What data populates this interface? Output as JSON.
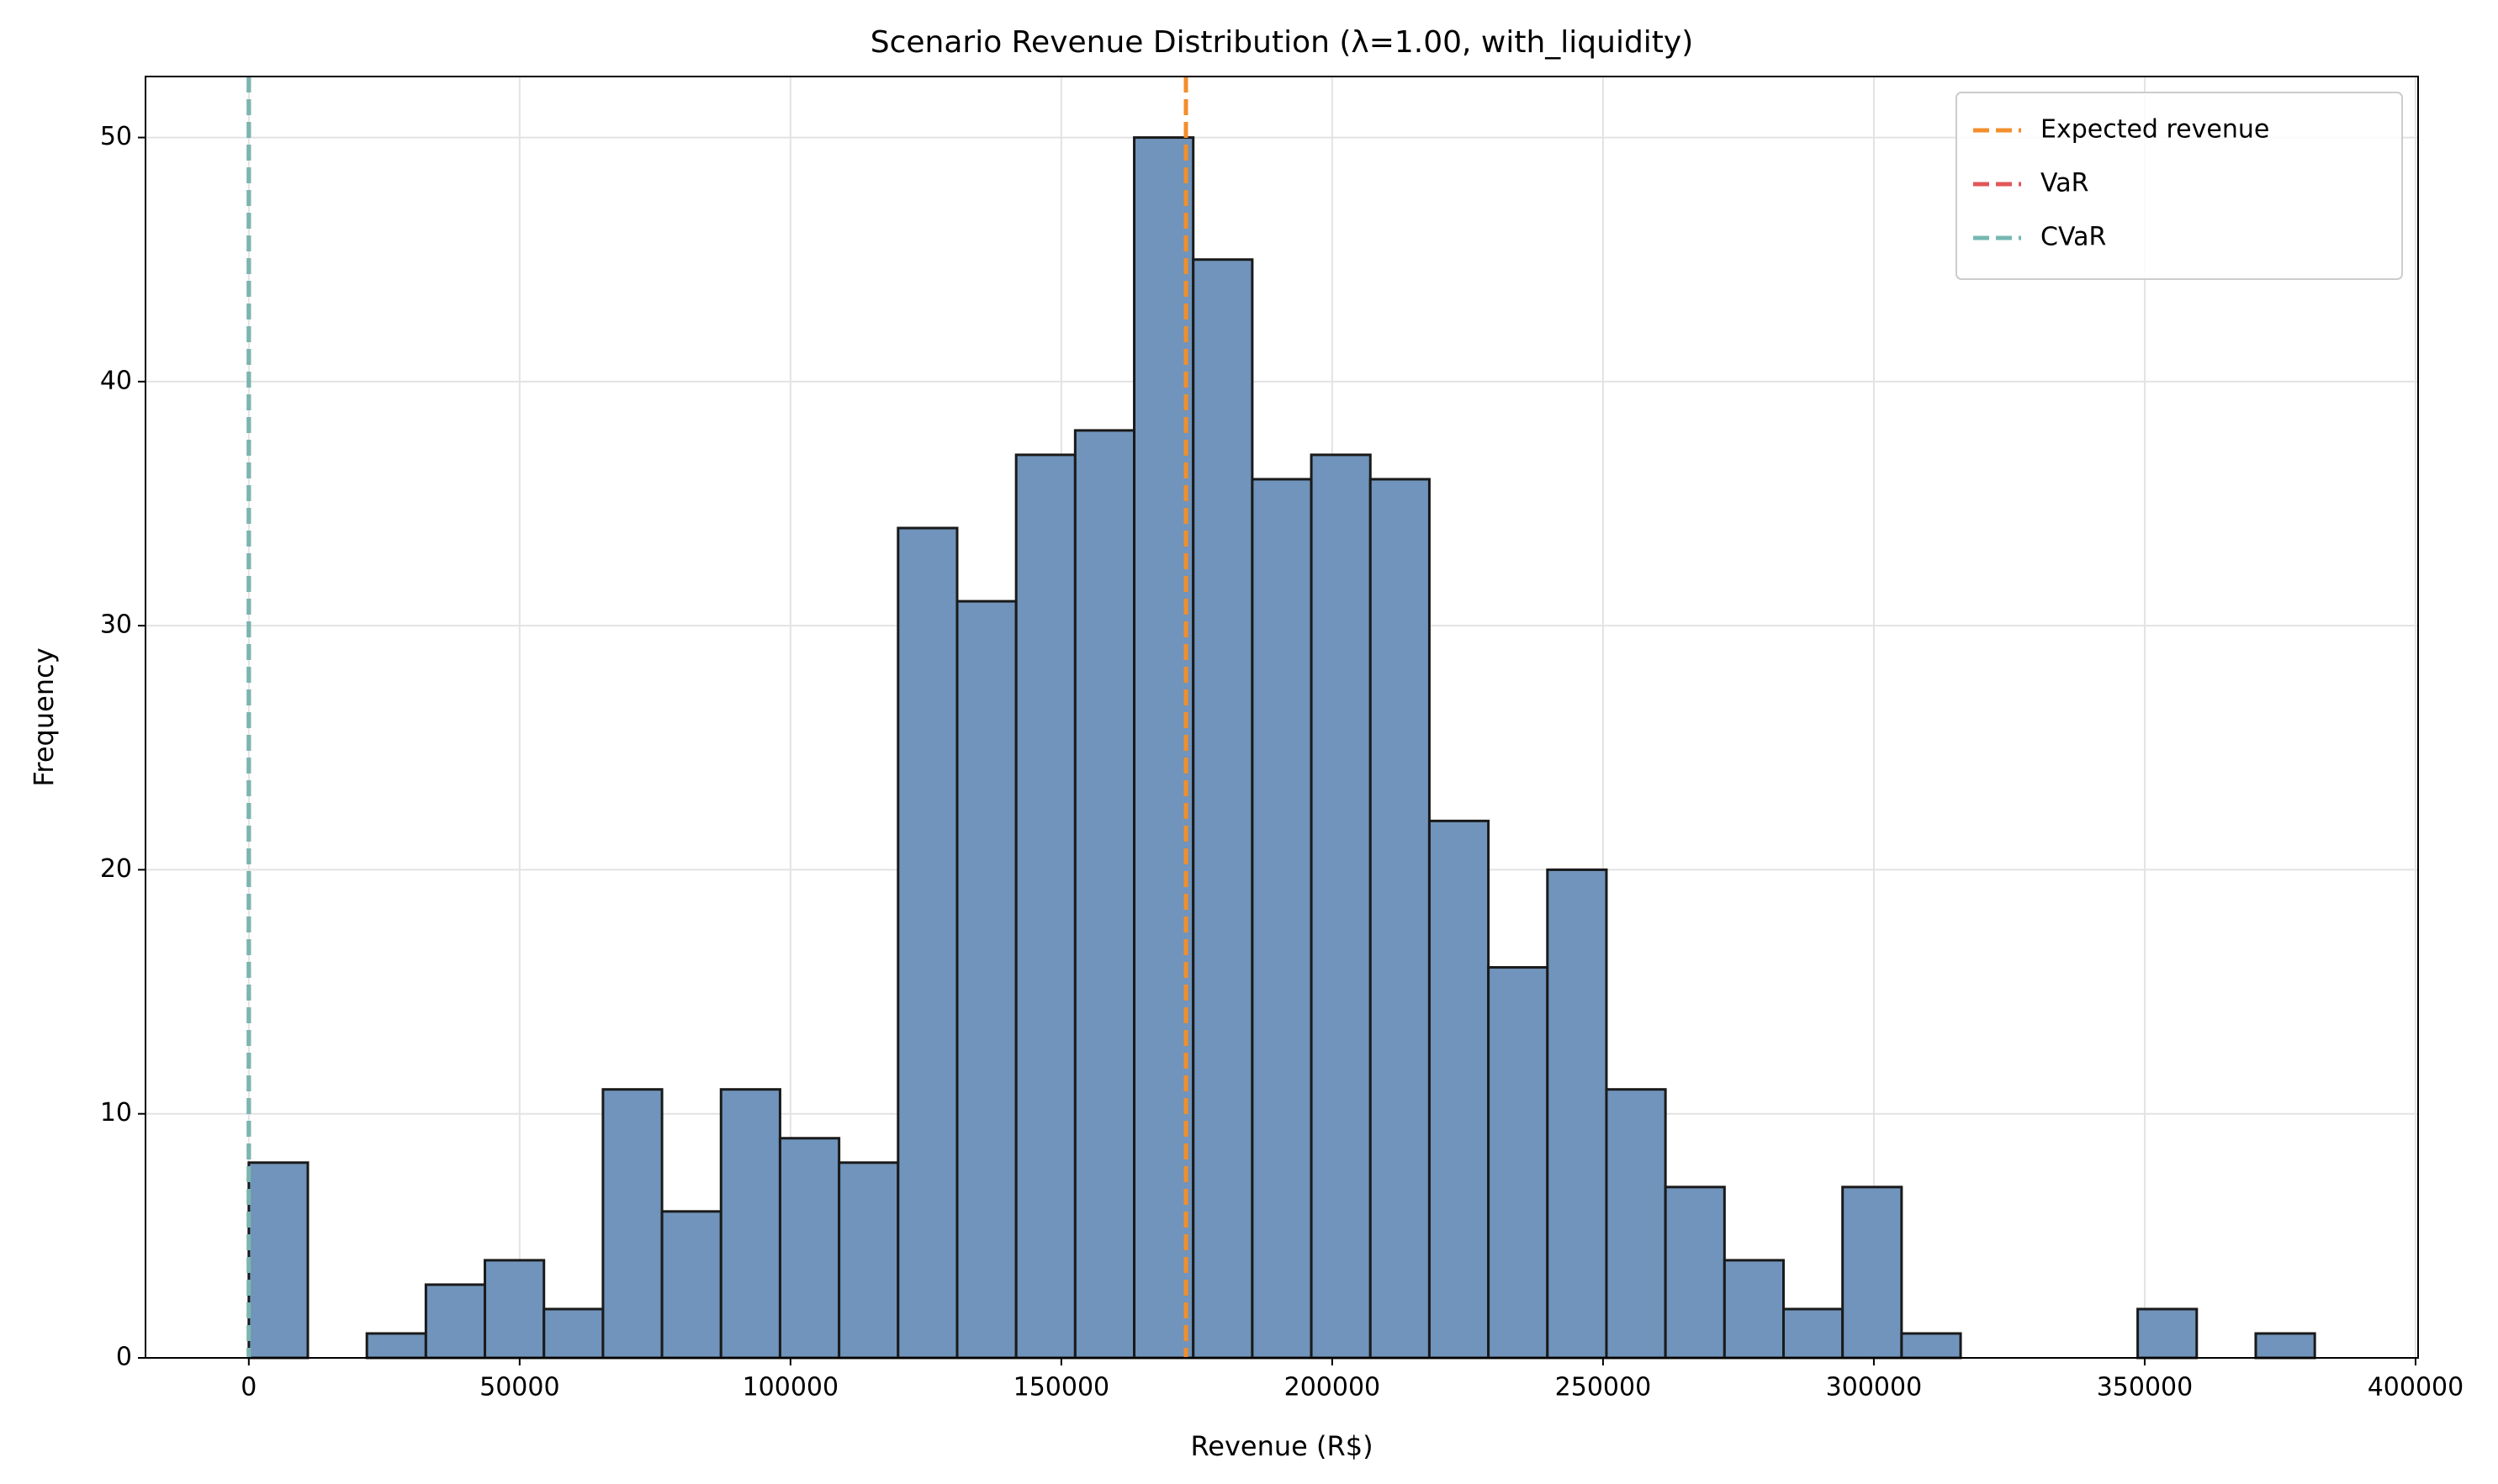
{
  "chart_data": {
    "type": "histogram",
    "title": "Scenario Revenue Distribution (λ=1.00, with_liquidity)",
    "x_label": "Revenue (R$)",
    "y_label": "Frequency",
    "bins": [
      0,
      10897,
      21794,
      32691,
      43588,
      54485,
      65382,
      76279,
      87176,
      98073,
      108970,
      119867,
      130764,
      141661,
      152558,
      163455,
      174352,
      185249,
      196146,
      207043,
      217940,
      228837,
      239734,
      250631,
      261528,
      272425,
      283322,
      294219,
      305116,
      316013,
      326910,
      337807,
      348704,
      359601,
      370498,
      381395
    ],
    "counts": [
      8,
      0,
      1,
      3,
      4,
      2,
      11,
      6,
      11,
      9,
      8,
      34,
      31,
      37,
      38,
      50,
      45,
      36,
      37,
      36,
      22,
      16,
      20,
      11,
      7,
      4,
      2,
      7,
      1,
      0,
      0,
      0,
      2,
      0,
      1
    ],
    "color": "#7094bb",
    "edge_color": "#1a1a1a",
    "lines": [
      {
        "name": "Expected revenue",
        "value": 173000,
        "color": "#f28e2b"
      },
      {
        "name": "VaR",
        "value": 0,
        "color": "#e15759"
      },
      {
        "name": "CVaR",
        "value": 0,
        "color": "#76b7b2"
      }
    ],
    "xlim": [
      -19070,
      400470
    ],
    "ylim": [
      0,
      52.5
    ],
    "xticks": [
      0,
      50000,
      100000,
      150000,
      200000,
      250000,
      300000,
      350000,
      400000
    ],
    "yticks": [
      0,
      10,
      20,
      30,
      40,
      50
    ],
    "grid": true,
    "legend": "upper right"
  }
}
